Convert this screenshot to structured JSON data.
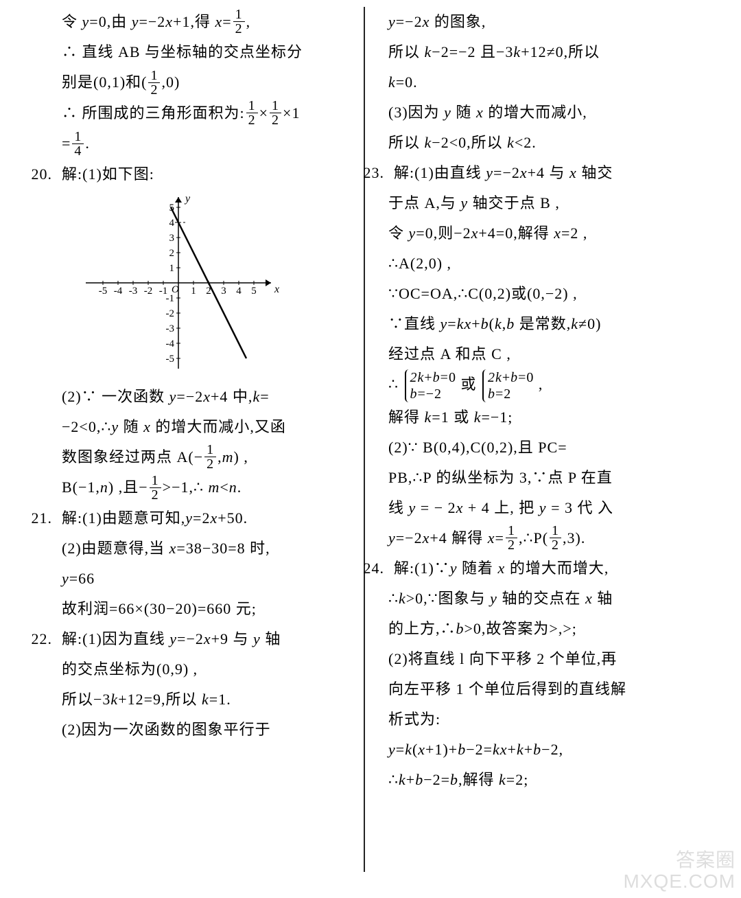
{
  "left": {
    "l1a": "令 ",
    "l1b": "=0,由 ",
    "l1c": "=−2",
    "l1d": "+1,得 ",
    "l1e": "=",
    "l1f": ",",
    "l2": "∴ 直线 AB 与坐标轴的交点坐标分",
    "l3a": "别是(0,1)和(",
    "l3b": ",0)",
    "l4a": "∴ 所围成的三角形面积为:",
    "l4b": "×",
    "l4c": "×1",
    "l5a": "=",
    "l5b": ".",
    "n20": "20.",
    "l6": "解:(1)如下图:",
    "l7a": "(2)∵ 一次函数 ",
    "l7b": "=−2",
    "l7c": "+4 中,",
    "l7d": "=",
    "l8a": "−2<0,∴",
    "l8b": " 随 ",
    "l8c": " 的增大而减小,又函",
    "l9a": "数图象经过两点 A(−",
    "l9b": ",",
    "l9c": ") ,",
    "l10a": "B(−1,",
    "l10b": ") ,且−",
    "l10c": ">−1,∴ ",
    "l10d": "<",
    "l10e": ".",
    "n21": "21.",
    "l11": "解:(1)由题意可知,",
    "l11b": "=2",
    "l11c": "+50.",
    "l12a": "(2)由题意得,当 ",
    "l12b": "=38−30=8 时,",
    "l13a": "",
    "l13b": "=66",
    "l14": "故利润=66×(30−20)=660 元;",
    "n22": "22.",
    "l15a": "解:(1)因为直线 ",
    "l15b": "=−2",
    "l15c": "+9 与 ",
    "l15d": " 轴",
    "l16": "的交点坐标为(0,9) ,",
    "l17a": "所以−3",
    "l17b": "+12=9,所以 ",
    "l17c": "=1.",
    "l18": "(2)因为一次函数的图象平行于"
  },
  "right": {
    "r1a": "",
    "r1b": "=−2",
    "r1c": " 的图象,",
    "r2a": "所以 ",
    "r2b": "−2=−2 且−3",
    "r2c": "+12≠0,所以",
    "r3a": "",
    "r3b": "=0.",
    "r4a": "(3)因为 ",
    "r4b": " 随 ",
    "r4c": " 的增大而减小,",
    "r5a": "所以 ",
    "r5b": "−2<0,所以 ",
    "r5c": "<2.",
    "n23": "23.",
    "r6a": "解:(1)由直线 ",
    "r6b": "=−2",
    "r6c": "+4 与 ",
    "r6d": " 轴交",
    "r7a": "于点 A,与 ",
    "r7b": " 轴交于点 B ,",
    "r8a": "令 ",
    "r8b": "=0,则−2",
    "r8c": "+4=0,解得 ",
    "r8d": "=2 ,",
    "r9": "∴A(2,0) ,",
    "r10": "∵OC=OA,∴C(0,2)或(0,−2) ,",
    "r11a": "∵直线 ",
    "r11b": "=",
    "r11c": "+",
    "r11d": "(",
    "r11e": ",",
    "r11f": " 是常数,",
    "r11g": "≠0)",
    "r12a": "经过点 A 和点 C ,",
    "r13a": "∴",
    "b1r1": "2k+b=0",
    "b1r2": "b=−2",
    "r13b": "或",
    "b2r1": "2k+b=0",
    "b2r2": "b=2",
    "r13c": " ,",
    "r14a": "解得 ",
    "r14b": "=1 或 ",
    "r14c": "=−1;",
    "r15a": "(2)∵ B(0,4),C(0,2),且 PC=",
    "r16a": "PB,∴P 的纵坐标为 3,∵点 P 在直",
    "r17a": "线 ",
    "r17b": " = − 2",
    "r17c": " + 4 上, 把 ",
    "r17d": " = 3 代 入",
    "r18a": "",
    "r18b": "=−2",
    "r18c": "+4 解得 ",
    "r18d": "=",
    "r18e": ",∴P(",
    "r18f": ",3).",
    "n24": "24.",
    "r19a": "解:(1)∵",
    "r19b": " 随着 ",
    "r19c": " 的增大而增大,",
    "r20a": "∴",
    "r20b": ">0,∵图象与 ",
    "r20c": " 轴的交点在 ",
    "r20d": " 轴",
    "r21a": "的上方,∴",
    "r21b": ">0,故答案为>,>;",
    "r22": "(2)将直线 l 向下平移 2 个单位,再",
    "r23": "向左平移 1 个单位后得到的直线解",
    "r24": "析式为:",
    "r25a": "",
    "r25b": "=",
    "r25c": "(",
    "r25d": "+1)+",
    "r25e": "−2=",
    "r25f": "+",
    "r25g": "+",
    "r25h": "−2,",
    "r26a": "∴",
    "r26b": "+",
    "r26c": "−2=",
    "r26d": ",解得 ",
    "r26e": "=2;"
  },
  "frac": {
    "n1": "1",
    "d2": "2",
    "d4": "4"
  },
  "chart": {
    "axis_color": "#000000",
    "line_color": "#000000",
    "tick_fontsize": 16,
    "xmin": -5,
    "xmax": 5,
    "ymin": -5,
    "ymax": 5,
    "ticks_x": [
      -5,
      -4,
      -3,
      -2,
      -1,
      1,
      2,
      3,
      4,
      5
    ],
    "ticks_y": [
      -5,
      -4,
      -3,
      -2,
      -1,
      1,
      2,
      3,
      4,
      5
    ],
    "line_p1": [
      -0.5,
      5
    ],
    "line_p2": [
      4.5,
      -5
    ],
    "x_label": "x",
    "y_label": "y",
    "origin_label": "O",
    "yhighlight": 4
  },
  "watermark": {
    "l1": "答案圈",
    "l2": "MXQE.COM"
  }
}
